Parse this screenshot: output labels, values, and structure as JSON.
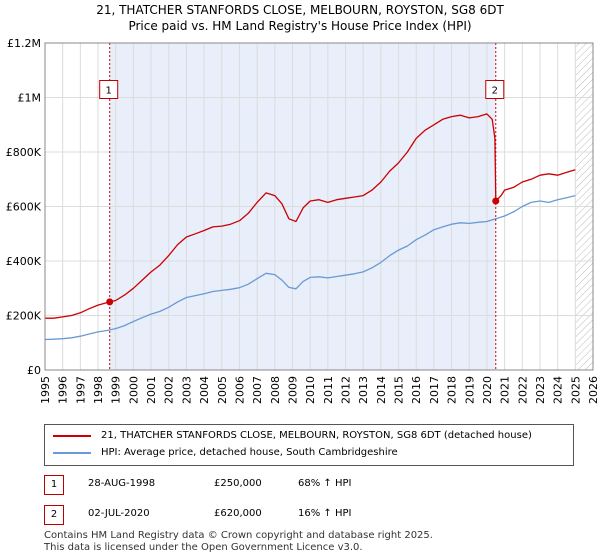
{
  "header": {
    "title_line1": "21, THATCHER STANFORDS CLOSE, MELBOURN, ROYSTON, SG8 6DT",
    "title_line2": "Price paid vs. HM Land Registry's House Price Index (HPI)"
  },
  "chart_data": {
    "type": "line",
    "x_range": [
      1995,
      2026
    ],
    "ylim": [
      0,
      1200000
    ],
    "y_ticks": [
      0,
      200000,
      400000,
      600000,
      800000,
      1000000,
      1200000
    ],
    "y_tick_labels": [
      "£0",
      "£200K",
      "£400K",
      "£600K",
      "£800K",
      "£1M",
      "£1.2M"
    ],
    "x_ticks": [
      1995,
      1996,
      1997,
      1998,
      1999,
      2000,
      2001,
      2002,
      2003,
      2004,
      2005,
      2006,
      2007,
      2008,
      2009,
      2010,
      2011,
      2012,
      2013,
      2014,
      2015,
      2016,
      2017,
      2018,
      2019,
      2020,
      2021,
      2022,
      2023,
      2024,
      2025,
      2026
    ],
    "grid": true,
    "shaded_period": [
      1998.66,
      2020.5
    ],
    "hatched_region": [
      2025.0,
      2026
    ],
    "series": [
      {
        "name": "21, THATCHER STANFORDS CLOSE, MELBOURN, ROYSTON, SG8 6DT (detached house)",
        "color": "#cc0000",
        "x": [
          1995,
          1995.5,
          1996,
          1996.5,
          1997,
          1997.5,
          1998,
          1998.66,
          1999,
          1999.5,
          2000,
          2000.5,
          2001,
          2001.5,
          2002,
          2002.5,
          2003,
          2003.5,
          2004,
          2004.5,
          2005,
          2005.5,
          2006,
          2006.5,
          2007,
          2007.5,
          2008,
          2008.4,
          2008.8,
          2009.2,
          2009.6,
          2010,
          2010.5,
          2011,
          2011.5,
          2012,
          2012.5,
          2013,
          2013.5,
          2014,
          2014.5,
          2015,
          2015.5,
          2016,
          2016.5,
          2017,
          2017.5,
          2018,
          2018.5,
          2019,
          2019.5,
          2020,
          2020.3,
          2020.45,
          2020.5,
          2020.8,
          2021,
          2021.5,
          2022,
          2022.5,
          2023,
          2023.5,
          2024,
          2024.5,
          2025
        ],
        "values": [
          190000,
          190000,
          195000,
          200000,
          210000,
          225000,
          238000,
          250000,
          255000,
          275000,
          300000,
          330000,
          360000,
          385000,
          420000,
          460000,
          488000,
          500000,
          512000,
          525000,
          528000,
          535000,
          548000,
          575000,
          615000,
          650000,
          640000,
          610000,
          555000,
          545000,
          595000,
          620000,
          625000,
          615000,
          625000,
          630000,
          635000,
          640000,
          660000,
          690000,
          730000,
          760000,
          800000,
          850000,
          880000,
          900000,
          920000,
          930000,
          935000,
          925000,
          930000,
          940000,
          920000,
          850000,
          620000,
          640000,
          660000,
          670000,
          690000,
          700000,
          715000,
          720000,
          715000,
          725000,
          735000
        ]
      },
      {
        "name": "HPI: Average price, detached house, South Cambridgeshire",
        "color": "#6a9ad4",
        "x": [
          1995,
          1995.5,
          1996,
          1996.5,
          1997,
          1997.5,
          1998,
          1998.5,
          1999,
          1999.5,
          2000,
          2000.5,
          2001,
          2001.5,
          2002,
          2002.5,
          2003,
          2003.5,
          2004,
          2004.5,
          2005,
          2005.5,
          2006,
          2006.5,
          2007,
          2007.5,
          2008,
          2008.4,
          2008.8,
          2009.2,
          2009.6,
          2010,
          2010.5,
          2011,
          2011.5,
          2012,
          2012.5,
          2013,
          2013.5,
          2014,
          2014.5,
          2015,
          2015.5,
          2016,
          2016.5,
          2017,
          2017.5,
          2018,
          2018.5,
          2019,
          2019.5,
          2020,
          2020.5,
          2021,
          2021.5,
          2022,
          2022.5,
          2023,
          2023.5,
          2024,
          2024.5,
          2025
        ],
        "values": [
          112000,
          113000,
          115000,
          118000,
          124000,
          132000,
          140000,
          145000,
          152000,
          163000,
          178000,
          192000,
          205000,
          215000,
          230000,
          250000,
          266000,
          273000,
          280000,
          288000,
          292000,
          296000,
          302000,
          315000,
          335000,
          355000,
          350000,
          330000,
          303000,
          298000,
          325000,
          340000,
          342000,
          338000,
          343000,
          348000,
          353000,
          360000,
          375000,
          395000,
          420000,
          440000,
          455000,
          478000,
          495000,
          515000,
          525000,
          535000,
          540000,
          538000,
          542000,
          545000,
          555000,
          565000,
          580000,
          600000,
          615000,
          620000,
          615000,
          625000,
          632000,
          640000
        ]
      }
    ],
    "sales": [
      {
        "label": "1",
        "x": 1998.66,
        "y": 250000
      },
      {
        "label": "2",
        "x": 2020.5,
        "y": 620000
      }
    ]
  },
  "legend": {
    "items": [
      {
        "label": "21, THATCHER STANFORDS CLOSE, MELBOURN, ROYSTON, SG8 6DT (detached house)",
        "color": "#cc0000"
      },
      {
        "label": "HPI: Average price, detached house, South Cambridgeshire",
        "color": "#6a9ad4"
      }
    ]
  },
  "transactions": [
    {
      "id": "1",
      "date": "28-AUG-1998",
      "price": "£250,000",
      "hpi": "68% ↑ HPI"
    },
    {
      "id": "2",
      "date": "02-JUL-2020",
      "price": "£620,000",
      "hpi": "16% ↑ HPI"
    }
  ],
  "footer": {
    "line1": "Contains HM Land Registry data © Crown copyright and database right 2025.",
    "line2": "This data is licensed under the Open Government Licence v3.0."
  }
}
